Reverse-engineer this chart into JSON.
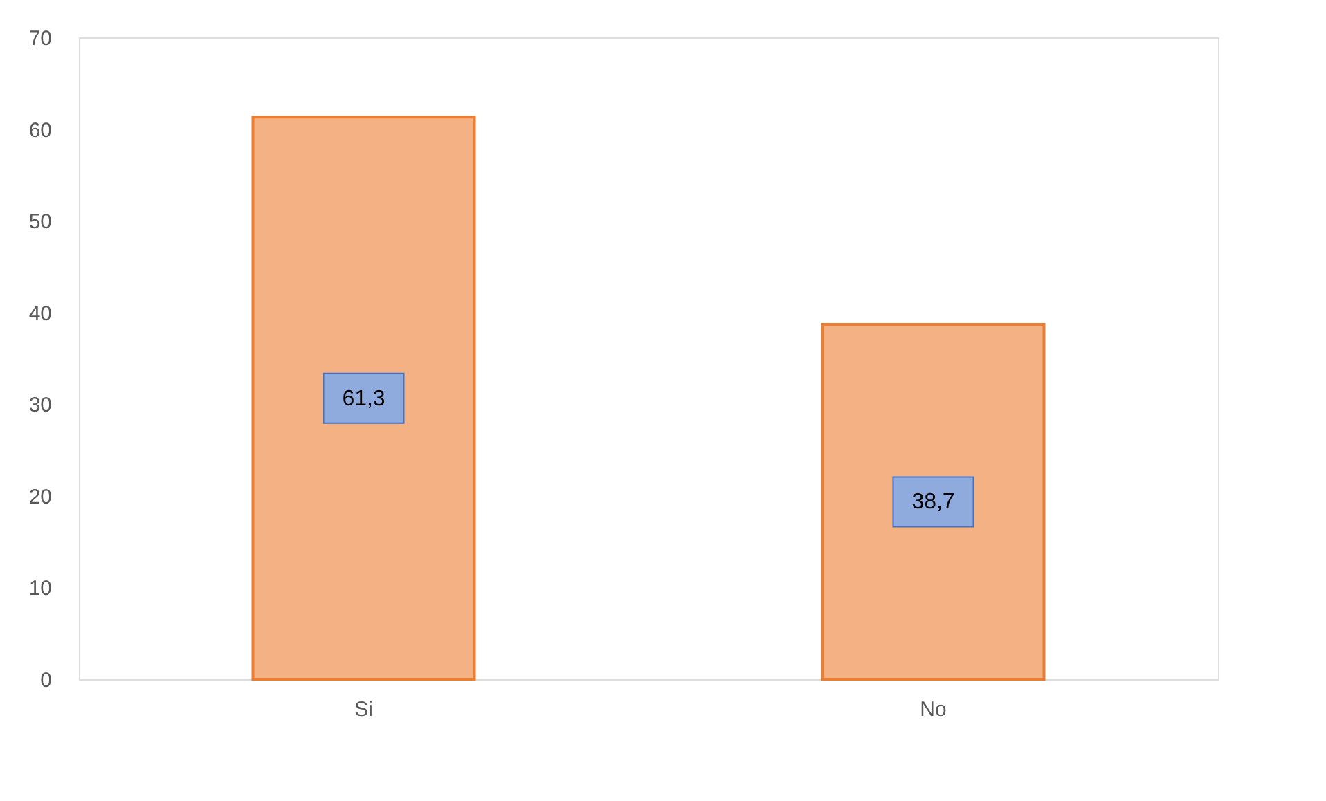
{
  "chart_data": {
    "type": "bar",
    "categories": [
      "Si",
      "No"
    ],
    "series": [
      {
        "color": "#f4b183",
        "values": [
          61.3,
          38.7
        ]
      }
    ],
    "value_labels": [
      "61,3",
      "38,7"
    ],
    "ylim": [
      0,
      70
    ],
    "yticks": [
      0,
      10,
      20,
      30,
      40,
      50,
      60,
      70
    ],
    "grid": false
  }
}
